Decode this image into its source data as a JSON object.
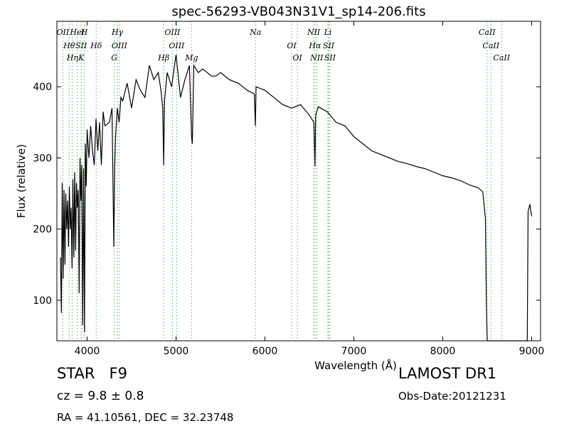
{
  "chart_data": {
    "type": "line",
    "title": "spec-56293-VB043N31V1_sp14-206.fits",
    "xlabel": "Wavelength (Å)",
    "ylabel": "Flux (relative)",
    "xlim": [
      3660,
      9100
    ],
    "ylim": [
      43,
      492
    ],
    "xticks": [
      4000,
      5000,
      6000,
      7000,
      8000,
      9000
    ],
    "yticks": [
      100,
      200,
      300,
      400
    ],
    "grid": false,
    "legend": "none",
    "line_color": "#000000",
    "series": [
      {
        "x": [
          3700,
          3710,
          3720,
          3730,
          3740,
          3750,
          3760,
          3770,
          3780,
          3790,
          3800,
          3810,
          3820,
          3830,
          3840,
          3850,
          3860,
          3870,
          3880,
          3890,
          3900,
          3910,
          3920,
          3930,
          3940,
          3950,
          3960,
          3970,
          3980,
          3990,
          4000,
          4020,
          4040,
          4060,
          4080,
          4100,
          4120,
          4140,
          4160,
          4180,
          4200,
          4250,
          4280,
          4300,
          4310,
          4320,
          4340,
          4360,
          4380,
          4400,
          4450,
          4500,
          4550,
          4600,
          4650,
          4700,
          4750,
          4800,
          4830,
          4850,
          4861,
          4870,
          4900,
          4950,
          5000,
          5050,
          5100,
          5150,
          5175,
          5183,
          5200,
          5250,
          5300,
          5350,
          5400,
          5450,
          5500,
          5600,
          5700,
          5800,
          5880,
          5893,
          5900,
          6000,
          6100,
          6200,
          6300,
          6400,
          6500,
          6550,
          6563,
          6570,
          6600,
          6700,
          6800,
          6900,
          7000,
          7100,
          7200,
          7300,
          7400,
          7500,
          7600,
          7700,
          7800,
          7900,
          8000,
          8100,
          8200,
          8300,
          8400,
          8450,
          8480,
          8490,
          8500,
          8950,
          8960,
          8970,
          8980,
          8990,
          9000
        ],
        "y": [
          160,
          82,
          265,
          130,
          255,
          150,
          250,
          200,
          240,
          175,
          260,
          200,
          230,
          145,
          270,
          160,
          280,
          170,
          265,
          230,
          255,
          110,
          300,
          240,
          290,
          65,
          285,
          55,
          320,
          260,
          340,
          300,
          345,
          310,
          290,
          355,
          310,
          350,
          290,
          365,
          345,
          350,
          370,
          175,
          290,
          330,
          370,
          350,
          385,
          380,
          405,
          370,
          410,
          395,
          385,
          430,
          410,
          420,
          395,
          370,
          290,
          380,
          420,
          400,
          445,
          385,
          410,
          430,
          330,
          320,
          430,
          420,
          425,
          420,
          415,
          415,
          420,
          410,
          405,
          395,
          390,
          345,
          400,
          395,
          385,
          375,
          370,
          375,
          360,
          350,
          288,
          360,
          372,
          365,
          350,
          345,
          330,
          320,
          310,
          305,
          300,
          295,
          292,
          288,
          285,
          280,
          275,
          272,
          268,
          262,
          258,
          252,
          215,
          100,
          43,
          43,
          225,
          230,
          235,
          225,
          218
        ]
      }
    ],
    "lines": [
      {
        "name": "OII",
        "wave": 3727
      },
      {
        "name": "Hθ",
        "wave": 3798
      },
      {
        "name": "Hη",
        "wave": 3835
      },
      {
        "name": "HeI",
        "wave": 3889
      },
      {
        "name": "SII",
        "wave": 3934
      },
      {
        "name": "K",
        "wave": 3934
      },
      {
        "name": "H",
        "wave": 3968
      },
      {
        "name": "Hδ",
        "wave": 4102
      },
      {
        "name": "G",
        "wave": 4305
      },
      {
        "name": "Hγ",
        "wave": 4341
      },
      {
        "name": "OIII",
        "wave": 4363
      },
      {
        "name": "Hβ",
        "wave": 4861
      },
      {
        "name": "OIII",
        "wave": 4959
      },
      {
        "name": "OIII",
        "wave": 5007
      },
      {
        "name": "Mg",
        "wave": 5175
      },
      {
        "name": "Na",
        "wave": 5894
      },
      {
        "name": "OI",
        "wave": 6300
      },
      {
        "name": "OI",
        "wave": 6364
      },
      {
        "name": "NII",
        "wave": 6548
      },
      {
        "name": "Hα",
        "wave": 6563
      },
      {
        "name": "NII",
        "wave": 6583
      },
      {
        "name": "Li",
        "wave": 6708
      },
      {
        "name": "SII",
        "wave": 6716
      },
      {
        "name": "SII",
        "wave": 6731
      },
      {
        "name": "CaII",
        "wave": 8498
      },
      {
        "name": "CaII",
        "wave": 8542
      },
      {
        "name": "CaII",
        "wave": 8662
      }
    ]
  },
  "info": {
    "class": "STAR   F9",
    "cz": "cz = 9.8 ± 0.8",
    "radec": "RA = 41.10561, DEC = 32.23748",
    "survey": "LAMOST DR1",
    "obsdate": "Obs-Date:20121231"
  }
}
